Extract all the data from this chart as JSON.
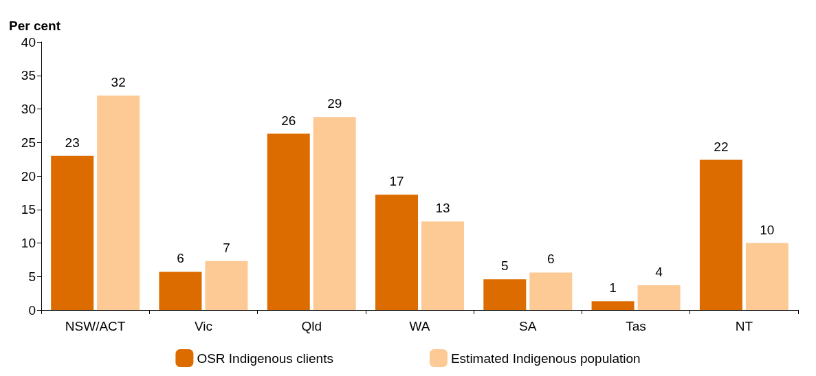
{
  "chart_data": {
    "type": "bar",
    "ylabel": "Per cent",
    "categories": [
      "NSW/ACT",
      "Vic",
      "Qld",
      "WA",
      "SA",
      "Tas",
      "NT"
    ],
    "series": [
      {
        "name": "OSR Indigenous clients",
        "color": "#dd6c00",
        "values": [
          23,
          5.7,
          26.3,
          17.2,
          4.6,
          1.3,
          22.4
        ],
        "value_labels": [
          "23",
          "6",
          "26",
          "17",
          "5",
          "1",
          "22"
        ]
      },
      {
        "name": "Estimated Indigenous population",
        "color": "#fdc994",
        "values": [
          32,
          7.3,
          28.8,
          13.2,
          5.6,
          3.7,
          10
        ],
        "value_labels": [
          "32",
          "7",
          "29",
          "13",
          "6",
          "4",
          "10"
        ]
      }
    ],
    "ylim": [
      0,
      40
    ],
    "yticks": [
      0,
      5,
      10,
      15,
      20,
      25,
      30,
      35,
      40
    ],
    "grid": false,
    "legend": "bottom"
  }
}
